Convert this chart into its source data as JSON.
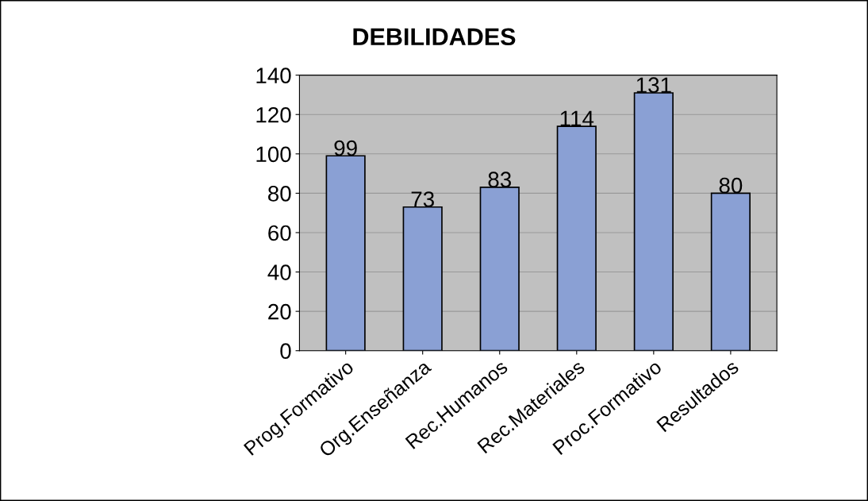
{
  "chart_data": {
    "type": "bar",
    "title": "DEBILIDADES",
    "categories": [
      "Prog.Formativo",
      "Org.Enseñanza",
      "Rec.Humanos",
      "Rec.Materiales",
      "Proc.Formativo",
      "Resultados"
    ],
    "values": [
      99,
      73,
      83,
      114,
      131,
      80
    ],
    "color": "#8aa0d4",
    "ylim": [
      0,
      140
    ],
    "yticks": [
      0,
      20,
      40,
      60,
      80,
      100,
      120,
      140
    ],
    "grid": "y",
    "data_labels": true
  }
}
